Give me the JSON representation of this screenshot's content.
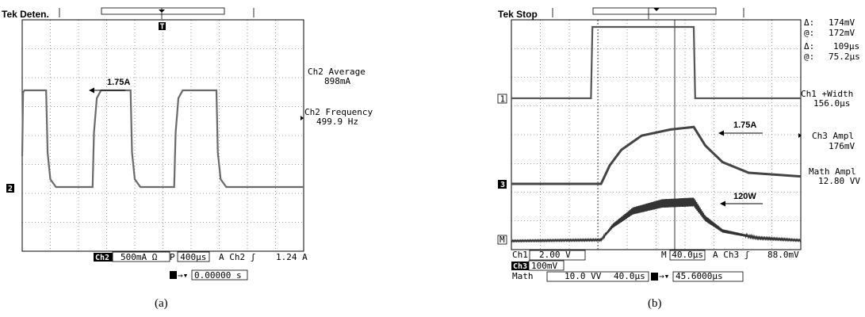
{
  "chart_data": [
    {
      "type": "line",
      "panel_label": "(a)",
      "header": "Tek Deten.",
      "annotation": "1.75A",
      "measurements": [
        {
          "name": "Ch2 Average",
          "value": "898mA"
        },
        {
          "name": "Ch2 Frequency",
          "value": "499.9 Hz"
        }
      ],
      "footer": {
        "channel": "Ch2",
        "volts_div": "500mA Ω",
        "time_div": "P 400µs",
        "trigger": "A  Ch2  ʃ",
        "trigger_level": "1.24 A",
        "trigger_pos": "0.00000 s"
      },
      "markers": {
        "ch": "2",
        "trigger": "T"
      },
      "series": [
        {
          "values": [
            [
              0,
              0.9
            ],
            [
              0.03,
              1.72
            ],
            [
              0.08,
              1.75
            ],
            [
              0.85,
              1.75
            ],
            [
              0.9,
              0.95
            ],
            [
              1.0,
              0.6
            ],
            [
              1.2,
              0.5
            ],
            [
              2.0,
              0.5
            ],
            [
              2.5,
              0.5
            ],
            [
              2.55,
              1.2
            ],
            [
              2.65,
              1.65
            ],
            [
              2.8,
              1.75
            ],
            [
              3.85,
              1.75
            ],
            [
              3.9,
              0.95
            ],
            [
              4.0,
              0.6
            ],
            [
              4.2,
              0.5
            ],
            [
              5.4,
              0.5
            ],
            [
              5.45,
              1.2
            ],
            [
              5.55,
              1.65
            ],
            [
              5.7,
              1.75
            ],
            [
              6.9,
              1.75
            ],
            [
              6.95,
              0.95
            ],
            [
              7.05,
              0.6
            ],
            [
              7.25,
              0.5
            ],
            [
              10.0,
              0.5
            ]
          ]
        }
      ]
    },
    {
      "type": "line",
      "panel_label": "(b)",
      "header": "Tek Stop",
      "annotations": [
        "1.75A",
        "120W"
      ],
      "measurements": [
        {
          "name": "Δ:",
          "value": "174mV"
        },
        {
          "name": "@:",
          "value": "172mV"
        },
        {
          "name": "Δ:",
          "value": "109µs"
        },
        {
          "name": "@:",
          "value": "75.2µs"
        },
        {
          "name": "Ch1 +Width",
          "value": "156.0µs"
        },
        {
          "name": "Ch3 Ampl",
          "value": "176mV"
        },
        {
          "name": "Math Ampl",
          "value": "12.80 VV"
        }
      ],
      "footer": {
        "ch1": "Ch1",
        "ch1_scale": "2.00 V",
        "ch3": "Ch3",
        "ch3_scale": "100mV",
        "math": "Math",
        "math_scale": "10.0 VV",
        "math_time": "40.0µs",
        "time_div": "M 40.0µs",
        "trigger": "A  Ch3  ʃ",
        "trigger_level": "88.0mV",
        "trigger_pos": "45.6000µs"
      },
      "markers": {
        "ch1": "1",
        "ch3": "3",
        "math": "M"
      },
      "series": [
        {
          "name": "Ch1",
          "values": [
            [
              0,
              0
            ],
            [
              2.75,
              0
            ],
            [
              2.8,
              1
            ],
            [
              6.3,
              1
            ],
            [
              6.35,
              0
            ],
            [
              10,
              0
            ]
          ]
        },
        {
          "name": "Ch3",
          "values": [
            [
              0,
              0
            ],
            [
              3.1,
              0
            ],
            [
              3.4,
              0.3
            ],
            [
              3.8,
              0.55
            ],
            [
              4.5,
              0.78
            ],
            [
              5.5,
              0.88
            ],
            [
              6.3,
              0.92
            ],
            [
              6.7,
              0.62
            ],
            [
              7.3,
              0.35
            ],
            [
              8.2,
              0.18
            ],
            [
              10,
              0.12
            ]
          ]
        },
        {
          "name": "Math",
          "values": [
            [
              0,
              0
            ],
            [
              3.1,
              0.02
            ],
            [
              3.5,
              0.3
            ],
            [
              4.2,
              0.6
            ],
            [
              5.2,
              0.75
            ],
            [
              6.3,
              0.78
            ],
            [
              6.7,
              0.45
            ],
            [
              7.3,
              0.2
            ],
            [
              8.5,
              0.06
            ],
            [
              10,
              0.01
            ]
          ]
        }
      ]
    }
  ]
}
